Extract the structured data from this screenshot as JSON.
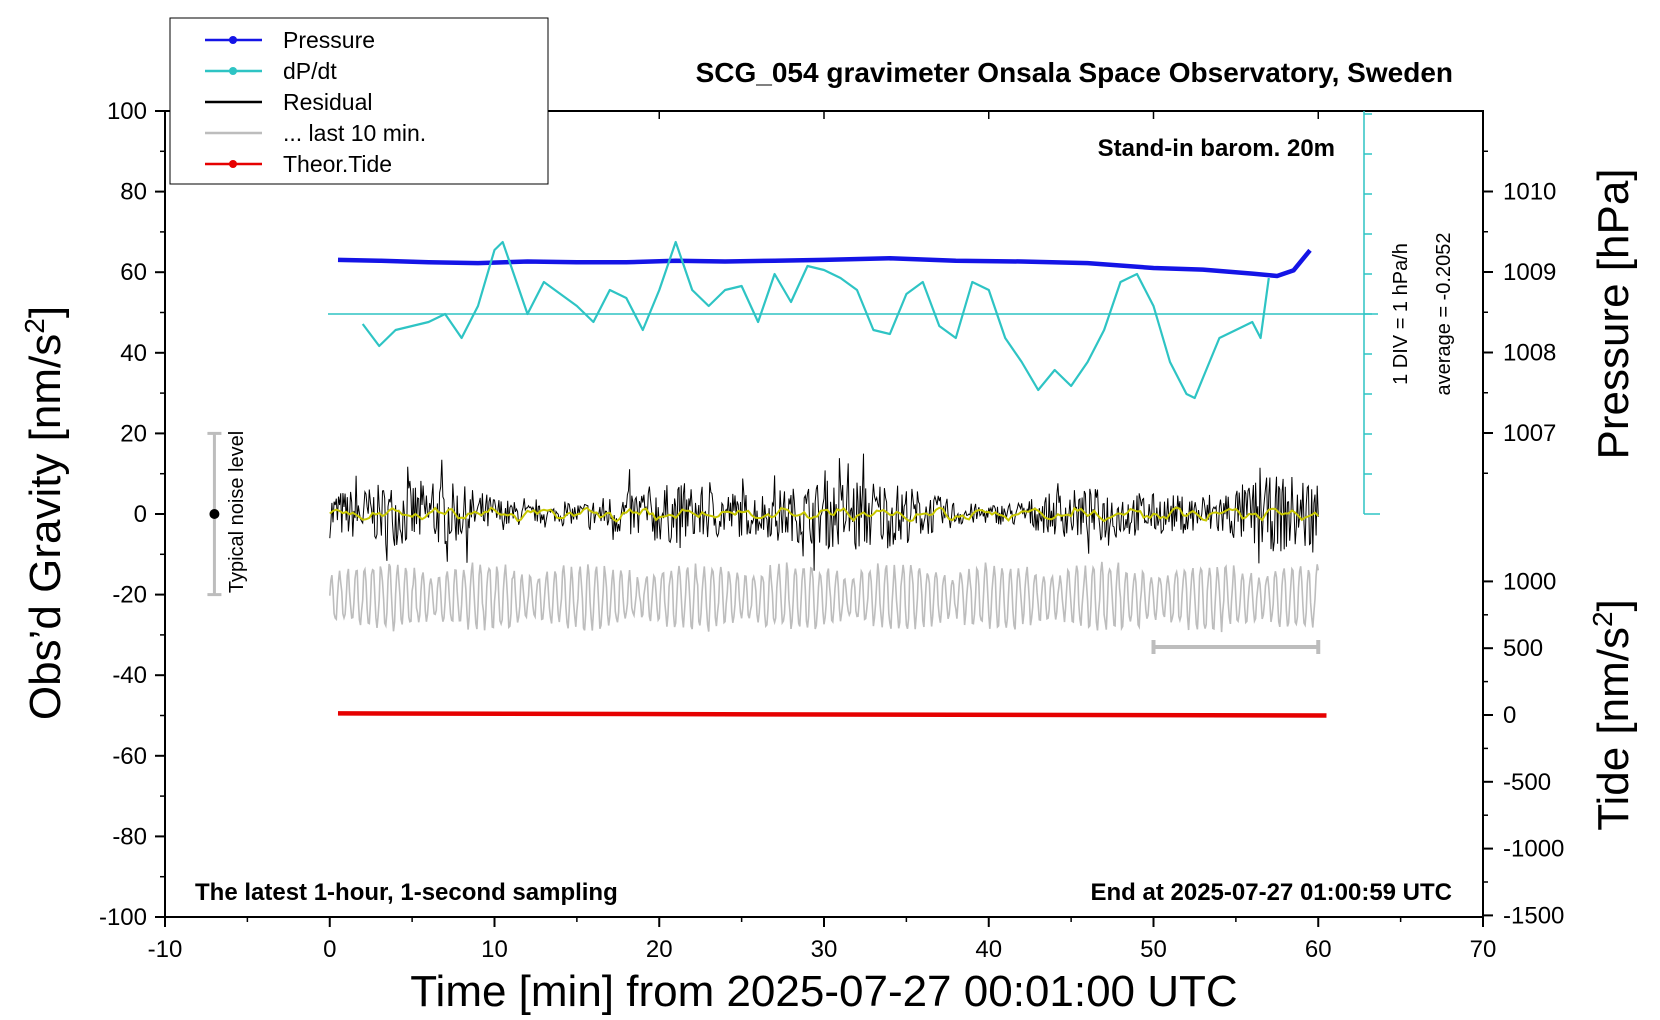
{
  "chart_data": {
    "type": "line",
    "title": "SCG_054 gravimeter Onsala Space Observatory, Sweden",
    "xlabel": "Time [min] from 2025-07-27 00:01:00 UTC",
    "ylabel_left": "Obs’d Gravity [nm/s",
    "ylabel_left_sup": "2",
    "ylabel_left_end": "]",
    "ylabel_right_top": "Pressure [hPa]",
    "ylabel_right_bottom": "Tide [nm/s",
    "ylabel_right_bottom_sup": "2",
    "ylabel_right_bottom_end": "]",
    "xlim": [
      -10,
      70
    ],
    "ylim": [
      -100,
      100
    ],
    "xticks": [
      "-10",
      "0",
      "10",
      "20",
      "30",
      "40",
      "50",
      "60",
      "70"
    ],
    "yticks_left": [
      "100",
      "80",
      "60",
      "40",
      "20",
      "0",
      "-20",
      "-40",
      "-60",
      "-80",
      "-100"
    ],
    "pressure_axis": {
      "ticks": [
        "1010",
        "1009",
        "1008",
        "1007"
      ],
      "values": [
        1010,
        1009,
        1008,
        1007
      ]
    },
    "tide_axis": {
      "ticks": [
        "1000",
        "500",
        "0",
        "-500",
        "-1000",
        "-1500"
      ],
      "values": [
        1000,
        500,
        0,
        -500,
        -1000,
        -1500
      ]
    },
    "notes": {
      "barometer": "Stand-in barom. 20m",
      "sampling": "The latest 1-hour, 1-second sampling",
      "end_time": "End at 2025-07-27 01:00:59 UTC",
      "noise_label": "Typical noise level",
      "dpdt_scale": "1 DIV = 1 hPa/h",
      "dpdt_average": "average = -0.2052"
    },
    "legend": {
      "placement": "top-left",
      "entries": [
        {
          "label": "Pressure",
          "color": "#1414e6"
        },
        {
          "label": "dP/dt",
          "color": "#2ec4c4"
        },
        {
          "label": "Residual",
          "color": "#000000"
        },
        {
          "label": "... last 10 min.",
          "color": "#bdbdbd"
        },
        {
          "label": "Theor.Tide",
          "color": "#e60000"
        }
      ]
    },
    "colors": {
      "pressure": "#1414e6",
      "dpdt": "#2ec4c4",
      "residual": "#000000",
      "residual_smooth": "#c8c800",
      "last10": "#bdbdbd",
      "tide": "#e60000"
    },
    "series": [
      {
        "name": "Pressure",
        "unit": "hPa",
        "x": [
          0.5,
          3,
          6,
          9,
          12,
          15,
          18,
          21,
          24,
          27,
          30,
          34,
          38,
          42,
          46,
          50,
          53,
          56,
          57.5,
          58.5,
          59.5
        ],
        "y": [
          1009.15,
          1009.14,
          1009.12,
          1009.11,
          1009.13,
          1009.12,
          1009.12,
          1009.14,
          1009.13,
          1009.14,
          1009.15,
          1009.17,
          1009.14,
          1009.13,
          1009.11,
          1009.05,
          1009.03,
          1008.98,
          1008.95,
          1009.02,
          1009.27
        ]
      },
      {
        "name": "dP/dt",
        "unit": "div",
        "x": [
          2,
          3,
          4,
          5,
          6,
          7,
          8,
          9,
          10,
          10.5,
          11,
          12,
          13,
          14,
          15,
          16,
          17,
          18,
          19,
          20,
          21,
          22,
          23,
          24,
          25,
          26,
          27,
          28,
          29,
          30,
          31,
          32,
          33,
          34,
          35,
          36,
          37,
          38,
          39,
          40,
          41,
          42,
          43,
          44,
          45,
          46,
          47,
          48,
          49,
          50,
          51,
          52,
          52.5,
          53,
          54,
          55,
          56,
          56.5,
          57
        ],
        "y": [
          -0.25,
          -0.8,
          -0.4,
          -0.3,
          -0.2,
          0.0,
          -0.6,
          0.2,
          1.6,
          1.8,
          1.2,
          0.0,
          0.8,
          0.5,
          0.2,
          -0.2,
          0.6,
          0.4,
          -0.4,
          0.6,
          1.8,
          0.6,
          0.2,
          0.6,
          0.7,
          -0.2,
          1.0,
          0.3,
          1.2,
          1.1,
          0.9,
          0.6,
          -0.4,
          -0.5,
          0.5,
          0.8,
          -0.3,
          -0.6,
          0.8,
          0.6,
          -0.6,
          -1.2,
          -1.9,
          -1.4,
          -1.8,
          -1.2,
          -0.4,
          0.8,
          1.0,
          0.2,
          -1.2,
          -2.0,
          -2.1,
          -1.6,
          -0.6,
          -0.4,
          -0.2,
          -0.6,
          0.9
        ]
      },
      {
        "name": "Residual",
        "unit": "nm/s2",
        "x_range": [
          0,
          60
        ],
        "amplitude_nm_s2": [
          -17,
          15
        ],
        "sampling": "1-second"
      },
      {
        "name": "... last 10 min.",
        "unit": "nm/s2",
        "x_range": [
          50,
          60
        ],
        "y": -33
      },
      {
        "name": "Theor.Tide",
        "unit": "nm/s2",
        "x": [
          0.5,
          60.5
        ],
        "y": [
          12,
          -4
        ]
      },
      {
        "name": "Typical noise level",
        "x": -7,
        "y": [
          -20,
          20
        ],
        "center": 0
      }
    ]
  }
}
